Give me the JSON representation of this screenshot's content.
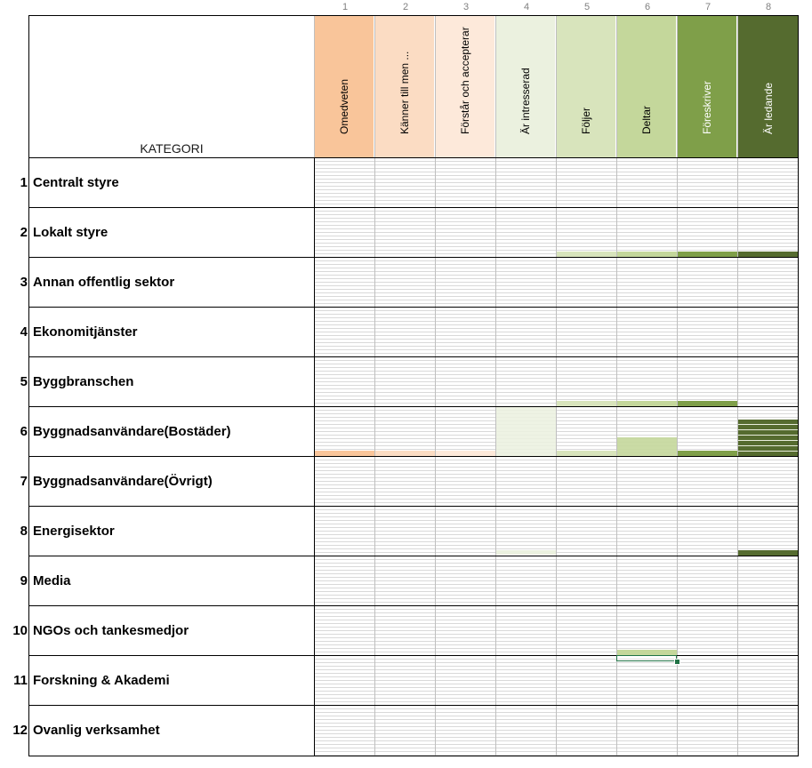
{
  "sheet": {
    "header_label": "KATEGORI",
    "column_numbers": [
      "1",
      "2",
      "3",
      "4",
      "5",
      "6",
      "7",
      "8"
    ],
    "levels": [
      {
        "label": "Omedveten",
        "color": "#f9c59a",
        "text_light": false
      },
      {
        "label": "Känner till men ...",
        "color": "#fbdcc3",
        "text_light": false
      },
      {
        "label": "Förstår och accepterar",
        "color": "#fde9da",
        "text_light": false
      },
      {
        "label": "Är intresserad",
        "color": "#ebf1df",
        "text_light": false
      },
      {
        "label": "Följer",
        "color": "#d8e4bc",
        "text_light": false
      },
      {
        "label": "Deltar",
        "color": "#c4d79b",
        "text_light": false
      },
      {
        "label": "Föreskriver",
        "color": "#7f9f49",
        "text_light": true
      },
      {
        "label": "Är ledande",
        "color": "#556b2f",
        "text_light": true
      }
    ],
    "categories": [
      {
        "num": "1",
        "label": "Centralt styre"
      },
      {
        "num": "2",
        "label": "Lokalt styre"
      },
      {
        "num": "3",
        "label": "Annan offentlig sektor"
      },
      {
        "num": "4",
        "label": "Ekonomitjänster"
      },
      {
        "num": "5",
        "label": "Byggbranschen"
      },
      {
        "num": "6",
        "label": "Byggnadsanvändare(Bostäder)"
      },
      {
        "num": "7",
        "label": "Byggnadsanvändare(Övrigt)"
      },
      {
        "num": "8",
        "label": "Energisektor"
      },
      {
        "num": "9",
        "label": "Media"
      },
      {
        "num": "10",
        "label": "NGOs och tankesmedjor"
      },
      {
        "num": "11",
        "label": "Forskning & Akademi"
      },
      {
        "num": "12",
        "label": "Ovanlig verksamhet"
      }
    ]
  }
}
